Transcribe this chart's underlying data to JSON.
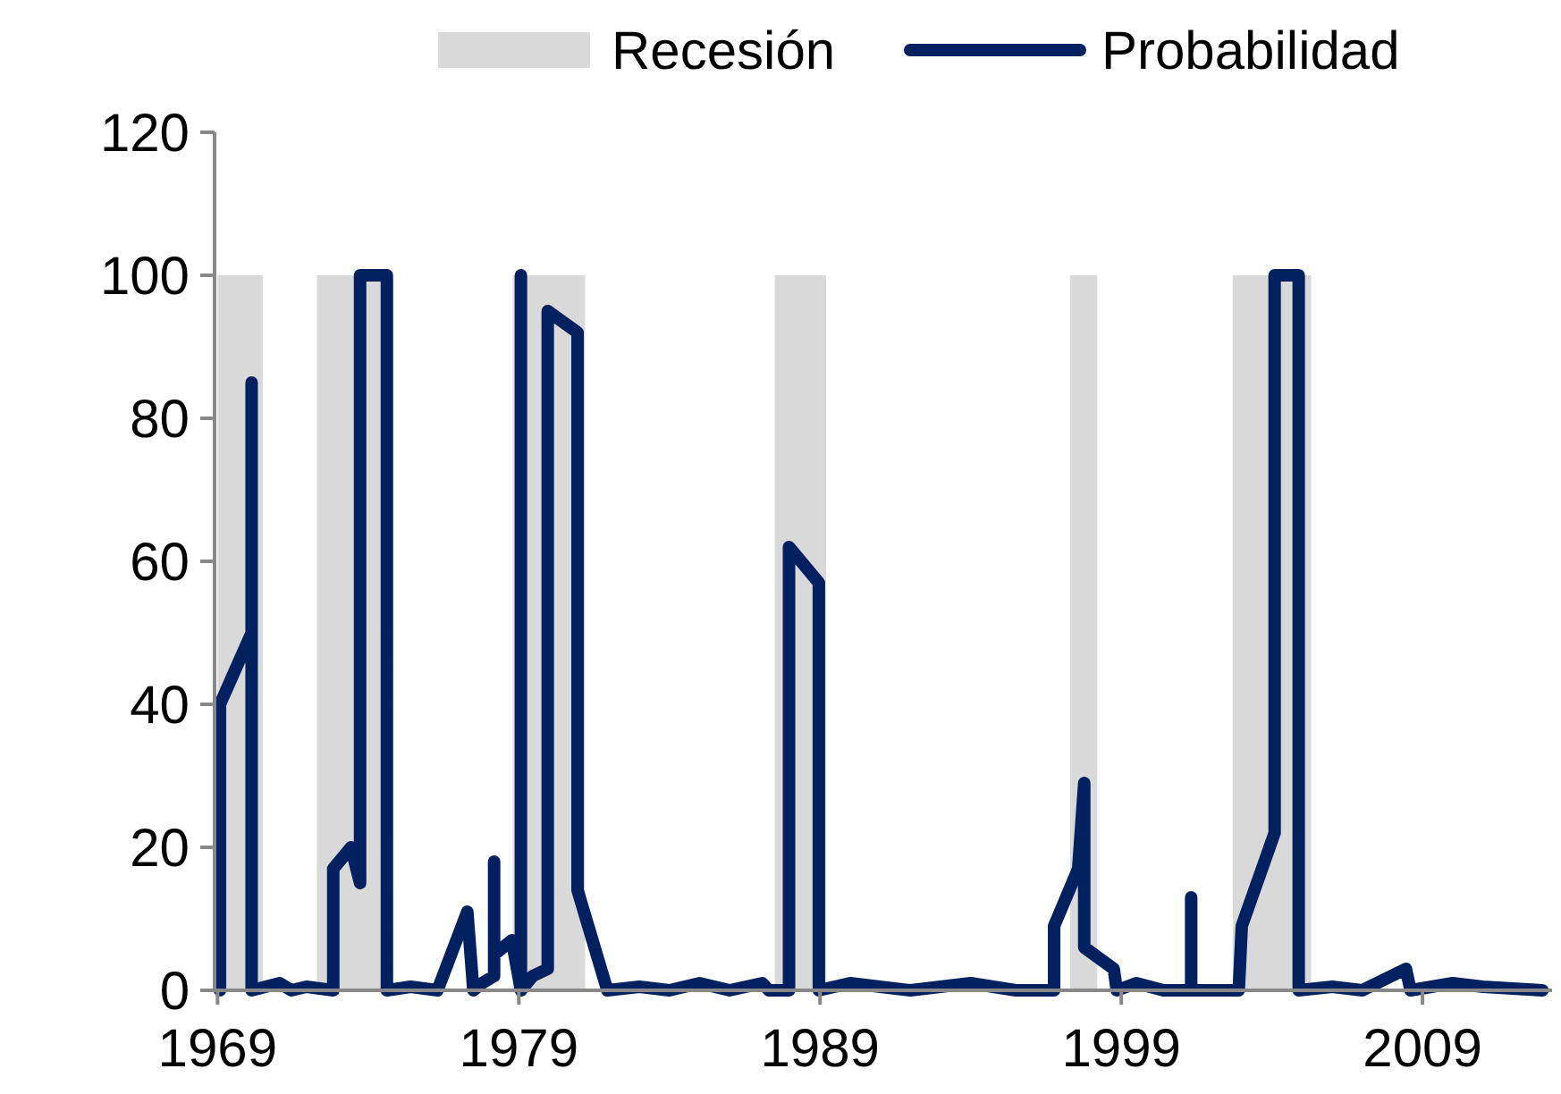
{
  "chart_data": {
    "type": "line",
    "legend": "top",
    "grid": false,
    "marker": "none",
    "line_style": "solid",
    "xlim": [
      1968.9,
      2013.3
    ],
    "xticks": [
      1969,
      1979,
      1989,
      1999,
      2009
    ],
    "ylim": [
      0,
      120
    ],
    "yticks": [
      0,
      20,
      40,
      60,
      80,
      100,
      120
    ],
    "series": [
      {
        "name": "Recesión",
        "type": "area",
        "color": "#d9d9d9",
        "x": [
          1969.0,
          1969.0,
          1970.5,
          1970.5,
          1972.3,
          1972.3,
          1974.8,
          1974.8,
          1978.8,
          1978.8,
          1981.2,
          1981.2,
          1987.5,
          1987.5,
          1989.2,
          1989.2,
          1997.3,
          1997.3,
          1998.2,
          1998.2,
          2002.7,
          2002.7,
          2005.3,
          2005.3
        ],
        "values": [
          0,
          100,
          100,
          0,
          0,
          100,
          100,
          0,
          0,
          100,
          100,
          0,
          0,
          100,
          100,
          0,
          0,
          100,
          100,
          0,
          0,
          100,
          100,
          0
        ]
      },
      {
        "name": "Probabilidad",
        "color": "#002060",
        "x": [
          1969.08,
          1969.08,
          1970.13,
          1970.13,
          1970.13,
          1970.13,
          1971.06,
          1971.45,
          1971.95,
          1972.84,
          1972.84,
          1973.43,
          1973.73,
          1973.73,
          1974.62,
          1974.62,
          1975.41,
          1976.3,
          1977.29,
          1977.49,
          1977.78,
          1978.18,
          1978.18,
          1978.18,
          1978.77,
          1979.07,
          1979.07,
          1979.07,
          1979.46,
          1979.96,
          1979.96,
          1980.95,
          1980.95,
          1981.94,
          1983.0,
          1984.0,
          1985.0,
          1986.0,
          1987.08,
          1987.3,
          1987.97,
          1987.97,
          1988.96,
          1988.96,
          1990.0,
          1992.0,
          1994.0,
          1995.5,
          1996.77,
          1996.77,
          1997.57,
          1997.77,
          1997.77,
          1998.75,
          1998.85,
          1999.5,
          2000.4,
          2001.32,
          2001.32,
          2001.32,
          2002.9,
          2003.0,
          2004.09,
          2004.09,
          2004.89,
          2004.89,
          2006.0,
          2007.0,
          2008.45,
          2008.6,
          2010.0,
          2011.0,
          2012.98
        ],
        "values": [
          0,
          40,
          50,
          85,
          37,
          0,
          1,
          0,
          0.5,
          0,
          17,
          20,
          15,
          100,
          100,
          0,
          0.5,
          0,
          11,
          0,
          1,
          2,
          18,
          5,
          7,
          0,
          100,
          0,
          2,
          3,
          95,
          92,
          14,
          0,
          0.5,
          0,
          1,
          0,
          1,
          0,
          0,
          62,
          57,
          0,
          1,
          0,
          1,
          0,
          0,
          9,
          17,
          29,
          6,
          3,
          0,
          1,
          0,
          0,
          13,
          0,
          0,
          9,
          22,
          100,
          100,
          0,
          0.5,
          0,
          3,
          0,
          1,
          0.5,
          0
        ]
      }
    ]
  }
}
